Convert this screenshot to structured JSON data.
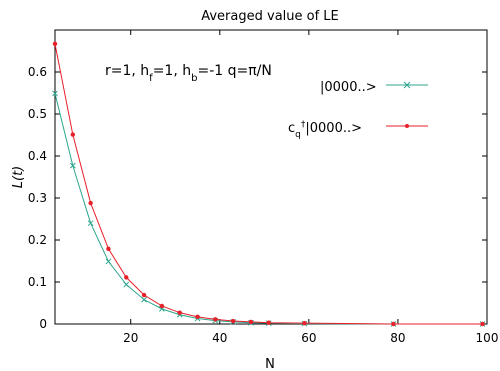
{
  "chart_data": {
    "type": "line",
    "title": "Averaged value of LE",
    "xlabel": "N",
    "ylabel": "L(t)",
    "xlim": [
      3,
      100
    ],
    "ylim": [
      0,
      0.7
    ],
    "xticks": [
      20,
      40,
      60,
      80,
      100
    ],
    "yticks": [
      0,
      0.1,
      0.2,
      0.3,
      0.4,
      0.5,
      0.6
    ],
    "grid": false,
    "legend_position": "top-right",
    "annotation": "r=1, h_f=1, h_b=-1 q=π/N",
    "series": [
      {
        "name": "|0000..>",
        "color": "#2ca58d",
        "marker": "x",
        "x": [
          3,
          7,
          11,
          15,
          19,
          23,
          27,
          31,
          35,
          39,
          43,
          47,
          51,
          59,
          79,
          99
        ],
        "y": [
          0.549,
          0.377,
          0.24,
          0.149,
          0.094,
          0.058,
          0.036,
          0.022,
          0.013,
          0.008,
          0.005,
          0.003,
          0.002,
          0.001,
          0.0,
          0.0
        ]
      },
      {
        "name": "c_q^†|0000..>",
        "color": "#e8202a",
        "marker": "dot",
        "x": [
          3,
          7,
          11,
          15,
          19,
          23,
          27,
          31,
          35,
          39,
          43,
          47,
          51,
          59,
          79,
          99
        ],
        "y": [
          0.667,
          0.451,
          0.288,
          0.179,
          0.111,
          0.069,
          0.043,
          0.027,
          0.017,
          0.011,
          0.007,
          0.005,
          0.003,
          0.002,
          0.0,
          0.0
        ]
      }
    ]
  }
}
